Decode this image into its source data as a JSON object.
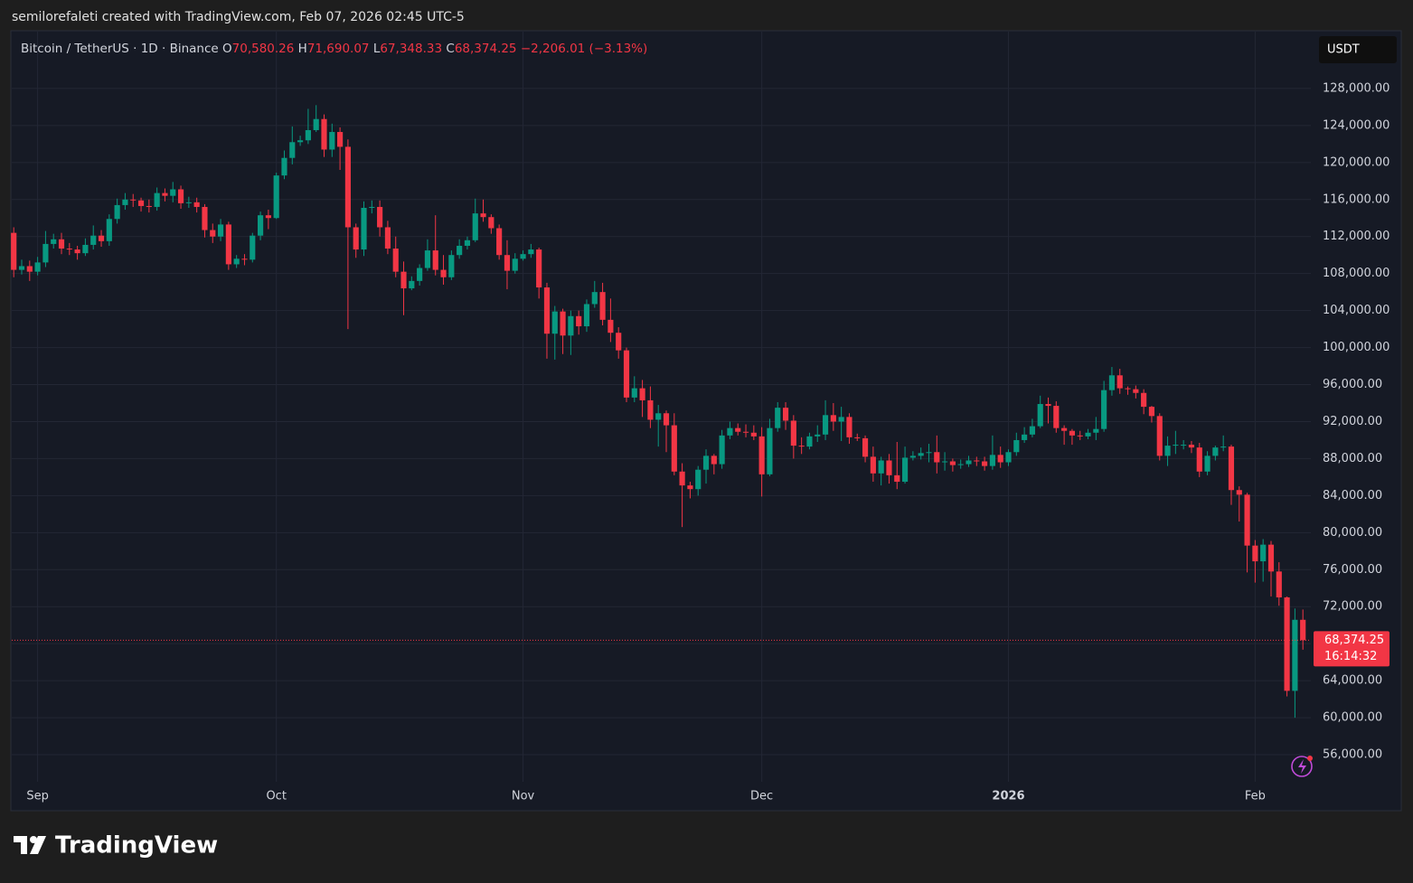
{
  "attribution": "semilorefaleti created with TradingView.com, Feb 07, 2026 02:45 UTC-5",
  "legend": {
    "symbol": "Bitcoin / TetherUS · 1D · Binance",
    "items": [
      {
        "label": "O",
        "value": "70,580.26"
      },
      {
        "label": "H",
        "value": "71,690.07"
      },
      {
        "label": "L",
        "value": "67,348.33"
      },
      {
        "label": "C",
        "value": "68,374.25"
      }
    ],
    "change": "−2,206.01 (−3.13%)"
  },
  "currency": "USDT",
  "watermark": "TradingView",
  "chart_data": {
    "type": "candlestick",
    "up_color": "#089981",
    "down_color": "#f23645",
    "grid": true,
    "xlim": [
      -0.25,
      163
    ],
    "xticks": [
      {
        "value": 3,
        "label": "Sep"
      },
      {
        "value": 33,
        "label": "Oct"
      },
      {
        "value": 64,
        "label": "Nov"
      },
      {
        "value": 94,
        "label": "Dec"
      },
      {
        "value": 125,
        "label": "2026"
      },
      {
        "value": 156,
        "label": "Feb"
      }
    ],
    "ylim": [
      53073,
      134146
    ],
    "yticks": [
      {
        "value": 56000,
        "label": "56,000.00"
      },
      {
        "value": 60000,
        "label": "60,000.00"
      },
      {
        "value": 64000,
        "label": "64,000.00"
      },
      {
        "value": 68000,
        "label": "68,000.00"
      },
      {
        "value": 72000,
        "label": "72,000.00"
      },
      {
        "value": 76000,
        "label": "76,000.00"
      },
      {
        "value": 80000,
        "label": "80,000.00"
      },
      {
        "value": 84000,
        "label": "84,000.00"
      },
      {
        "value": 88000,
        "label": "88,000.00"
      },
      {
        "value": 92000,
        "label": "92,000.00"
      },
      {
        "value": 96000,
        "label": "96,000.00"
      },
      {
        "value": 100000,
        "label": "100,000.00"
      },
      {
        "value": 104000,
        "label": "104,000.00"
      },
      {
        "value": 108000,
        "label": "108,000.00"
      },
      {
        "value": 112000,
        "label": "112,000.00"
      },
      {
        "value": 116000,
        "label": "116,000.00"
      },
      {
        "value": 120000,
        "label": "120,000.00"
      },
      {
        "value": 124000,
        "label": "124,000.00"
      },
      {
        "value": 128000,
        "label": "128,000.00"
      }
    ],
    "hidden_ytick_label_values": [
      68000
    ],
    "last_price": {
      "value": 68374.25,
      "label": "68,374.25"
    },
    "countdown": "16:14:32",
    "open": [
      112400,
      108400,
      108800,
      108200,
      109200,
      111200,
      111700,
      110700,
      110600,
      110200,
      111100,
      112100,
      111500,
      113900,
      115400,
      116000,
      115900,
      115300,
      115200,
      116700,
      116400,
      117100,
      115600,
      115700,
      115200,
      112700,
      112000,
      113300,
      109000,
      109600,
      109500,
      112100,
      114300,
      114000,
      118600,
      120500,
      122200,
      122400,
      123500,
      124700,
      121400,
      123300,
      121700,
      113000,
      110600,
      115100,
      115200,
      113000,
      110700,
      108200,
      106400,
      107200,
      108600,
      110500,
      108400,
      107600,
      110000,
      111000,
      111600,
      114500,
      114100,
      112900,
      110000,
      108300,
      109600,
      110100,
      110600,
      106500,
      101500,
      103900,
      101300,
      103400,
      102300,
      104700,
      106000,
      103000,
      101600,
      99700,
      94600,
      95600,
      94300,
      92200,
      92900,
      91600,
      86600,
      85100,
      84700,
      86800,
      88300,
      87400,
      90500,
      91300,
      90900,
      90800,
      90400,
      86300,
      91300,
      93500,
      92100,
      89400,
      89300,
      90400,
      90600,
      92700,
      92000,
      92500,
      90300,
      90200,
      88200,
      86400,
      87800,
      86200,
      85500,
      88100,
      88300,
      88600,
      88700,
      87600,
      87700,
      87300,
      87400,
      87800,
      87700,
      87200,
      88400,
      87600,
      88700,
      90000,
      90600,
      91500,
      93900,
      93700,
      91300,
      91000,
      90500,
      90400,
      90800,
      91200,
      95400,
      97000,
      95600,
      95500,
      95100,
      93600,
      92600,
      88300,
      89400,
      89500,
      89500,
      89200,
      86600,
      88300,
      89200,
      89300,
      84600,
      84100,
      78600,
      76900,
      78700,
      75800,
      73000,
      62900,
      70580.26
    ],
    "high": [
      113000,
      109500,
      109400,
      109800,
      112600,
      112300,
      112400,
      111300,
      111000,
      111800,
      113200,
      112700,
      114400,
      116100,
      116700,
      116600,
      116200,
      116000,
      117300,
      117200,
      117900,
      117500,
      116300,
      116200,
      115500,
      113400,
      113900,
      113600,
      110000,
      110100,
      112400,
      114700,
      114900,
      118900,
      121300,
      123900,
      122900,
      125800,
      126200,
      125200,
      124200,
      123800,
      122500,
      113400,
      115800,
      115900,
      115900,
      113700,
      112000,
      109300,
      107700,
      109000,
      111700,
      114300,
      110000,
      110500,
      111700,
      112000,
      116100,
      116000,
      114400,
      113300,
      111600,
      110200,
      110500,
      111200,
      110800,
      107000,
      104500,
      104200,
      104000,
      104000,
      105200,
      107200,
      107000,
      105300,
      102200,
      100000,
      96900,
      96500,
      95800,
      93800,
      93200,
      92900,
      87500,
      85500,
      87200,
      89000,
      88500,
      91100,
      92000,
      91800,
      91700,
      91600,
      91400,
      92300,
      94100,
      94100,
      92700,
      90300,
      90800,
      91600,
      94300,
      94000,
      93600,
      92900,
      90700,
      90500,
      89300,
      88200,
      88500,
      89800,
      89300,
      88800,
      89200,
      89600,
      90500,
      88700,
      88000,
      87900,
      88300,
      88200,
      88200,
      90500,
      89300,
      89000,
      90800,
      91400,
      92300,
      94800,
      94600,
      94200,
      91600,
      91200,
      91000,
      91200,
      92500,
      96400,
      97900,
      97700,
      95800,
      95900,
      95500,
      93700,
      92900,
      90400,
      91000,
      90000,
      89900,
      89700,
      88800,
      89400,
      90500,
      89500,
      85000,
      84300,
      79200,
      79300,
      79100,
      76800,
      73100,
      71800,
      71690.07
    ],
    "low": [
      107600,
      107900,
      107200,
      107800,
      108700,
      110700,
      110100,
      110000,
      109500,
      109900,
      110600,
      110900,
      111000,
      113400,
      114900,
      115200,
      114700,
      114600,
      114800,
      115800,
      115700,
      115000,
      115100,
      114600,
      111900,
      111300,
      111500,
      108400,
      108600,
      108900,
      109200,
      111600,
      112800,
      113900,
      118200,
      119800,
      121800,
      122000,
      123300,
      120600,
      120600,
      119200,
      102000,
      109700,
      109900,
      114500,
      112000,
      110100,
      107600,
      103500,
      106200,
      106700,
      108300,
      107800,
      106800,
      107300,
      109600,
      110600,
      111400,
      113600,
      112300,
      109500,
      106300,
      108000,
      109400,
      109700,
      105300,
      98800,
      98700,
      99300,
      99200,
      101400,
      101700,
      104300,
      102400,
      100600,
      98800,
      94100,
      94100,
      92500,
      91300,
      89300,
      88700,
      86200,
      80600,
      83700,
      84000,
      85300,
      86300,
      86900,
      90100,
      90500,
      90300,
      90000,
      83900,
      86100,
      90900,
      91100,
      88000,
      88500,
      89000,
      89800,
      90000,
      91000,
      89900,
      89600,
      89900,
      87600,
      85500,
      85100,
      85300,
      84700,
      85300,
      87800,
      87900,
      87600,
      86400,
      86700,
      86600,
      86900,
      87100,
      87200,
      86700,
      86800,
      87000,
      87200,
      88300,
      89700,
      90300,
      91300,
      91800,
      90800,
      89500,
      89500,
      90000,
      90100,
      90000,
      90900,
      94800,
      95000,
      94900,
      94500,
      92800,
      91900,
      87800,
      87200,
      88500,
      89000,
      88600,
      86000,
      86200,
      87800,
      88800,
      83000,
      81200,
      75700,
      74600,
      74700,
      73100,
      72100,
      62300,
      60000,
      67348.33
    ],
    "close": [
      108400,
      108800,
      108200,
      109200,
      111200,
      111700,
      110700,
      110600,
      110200,
      111100,
      112100,
      111500,
      113900,
      115400,
      116000,
      115900,
      115300,
      115200,
      116700,
      116400,
      117100,
      115600,
      115700,
      115200,
      112700,
      112000,
      113300,
      109000,
      109600,
      109500,
      112100,
      114300,
      114000,
      118600,
      120500,
      122200,
      122400,
      123500,
      124700,
      121400,
      123300,
      121700,
      113000,
      110600,
      115100,
      115200,
      113000,
      110700,
      108200,
      106400,
      107200,
      108600,
      110500,
      108400,
      107600,
      110000,
      111000,
      111600,
      114500,
      114100,
      112900,
      110000,
      108300,
      109600,
      110100,
      110600,
      106500,
      101500,
      103900,
      101300,
      103400,
      102300,
      104700,
      106000,
      103000,
      101600,
      99700,
      94600,
      95600,
      94300,
      92200,
      92900,
      91600,
      86600,
      85100,
      84700,
      86800,
      88300,
      87400,
      90500,
      91300,
      90900,
      90800,
      90400,
      86300,
      91300,
      93500,
      92100,
      89400,
      89300,
      90400,
      90600,
      92700,
      92000,
      92500,
      90300,
      90200,
      88200,
      86400,
      87800,
      86200,
      85500,
      88100,
      88300,
      88600,
      88700,
      87600,
      87700,
      87300,
      87400,
      87800,
      87700,
      87200,
      88400,
      87600,
      88700,
      90000,
      90600,
      91500,
      93900,
      93700,
      91300,
      91000,
      90500,
      90400,
      90800,
      91200,
      95400,
      97000,
      95600,
      95500,
      95100,
      93600,
      92600,
      88300,
      89400,
      89500,
      89500,
      89200,
      86600,
      88300,
      89200,
      89300,
      84600,
      84100,
      78600,
      76900,
      78700,
      75800,
      73000,
      62900,
      70580.26,
      68374.25
    ]
  }
}
